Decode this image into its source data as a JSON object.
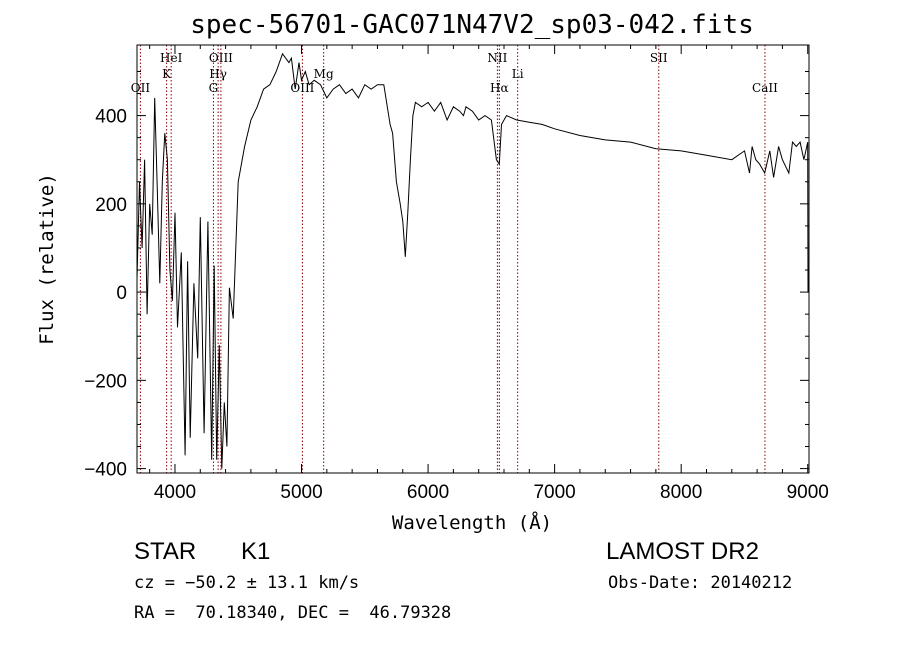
{
  "chart_data": {
    "type": "line",
    "title": "spec-56701-GAC071N47V2_sp03-042.fits",
    "xlabel": "Wavelength (Å)",
    "ylabel": "Flux (relative)",
    "xlim": [
      3700,
      9010
    ],
    "ylim": [
      -410,
      560
    ],
    "xticks": [
      4000,
      5000,
      6000,
      7000,
      8000,
      9000
    ],
    "yticks": [
      -400,
      -200,
      0,
      200,
      400
    ],
    "grid": false,
    "spectrum": {
      "x": [
        3700,
        3720,
        3740,
        3760,
        3780,
        3800,
        3820,
        3840,
        3860,
        3880,
        3900,
        3920,
        3940,
        3960,
        3980,
        4000,
        4020,
        4050,
        4080,
        4100,
        4120,
        4150,
        4180,
        4200,
        4230,
        4260,
        4290,
        4310,
        4330,
        4350,
        4370,
        4390,
        4410,
        4430,
        4460,
        4500,
        4550,
        4600,
        4650,
        4700,
        4750,
        4800,
        4850,
        4900,
        4920,
        4950,
        4980,
        5000,
        5030,
        5060,
        5100,
        5150,
        5200,
        5250,
        5300,
        5350,
        5400,
        5450,
        5500,
        5550,
        5600,
        5650,
        5700,
        5720,
        5750,
        5780,
        5800,
        5820,
        5840,
        5860,
        5880,
        5900,
        5950,
        6000,
        6050,
        6100,
        6150,
        6200,
        6250,
        6280,
        6300,
        6350,
        6400,
        6450,
        6500,
        6540,
        6563,
        6580,
        6620,
        6700,
        6800,
        6900,
        7000,
        7200,
        7400,
        7600,
        7800,
        8000,
        8200,
        8400,
        8500,
        8540,
        8560,
        8590,
        8620,
        8660,
        8700,
        8730,
        8770,
        8800,
        8850,
        8880,
        8910,
        8940,
        8970,
        9000,
        9002
      ],
      "y": [
        30,
        250,
        100,
        300,
        -50,
        200,
        130,
        440,
        240,
        20,
        250,
        360,
        300,
        50,
        -20,
        180,
        -80,
        90,
        -370,
        70,
        -330,
        20,
        -150,
        170,
        -320,
        160,
        -380,
        60,
        -380,
        -120,
        -400,
        -250,
        -350,
        10,
        -60,
        250,
        330,
        390,
        420,
        460,
        470,
        500,
        540,
        520,
        530,
        460,
        520,
        480,
        500,
        470,
        480,
        470,
        440,
        460,
        470,
        450,
        460,
        440,
        470,
        460,
        470,
        470,
        380,
        360,
        250,
        200,
        160,
        80,
        180,
        300,
        400,
        430,
        420,
        430,
        410,
        430,
        390,
        420,
        410,
        400,
        420,
        410,
        390,
        400,
        390,
        300,
        290,
        380,
        400,
        390,
        385,
        380,
        370,
        355,
        345,
        340,
        325,
        320,
        310,
        300,
        320,
        270,
        330,
        300,
        290,
        270,
        320,
        260,
        330,
        300,
        270,
        340,
        330,
        340,
        300,
        340,
        0
      ],
      "color": "#000000"
    },
    "reference_lines": [
      {
        "name": "OII",
        "wavelength": 3727
      },
      {
        "name": "K",
        "wavelength": 3934
      },
      {
        "name": "HeI",
        "wavelength": 3970
      },
      {
        "name": "G",
        "wavelength": 4304
      },
      {
        "name": "Hγ",
        "wavelength": 4341
      },
      {
        "name": "OIII",
        "wavelength": 4363
      },
      {
        "name": "OIII",
        "wavelength": 5007
      },
      {
        "name": "Mg",
        "wavelength": 5175
      },
      {
        "name": "NII",
        "wavelength": 6548
      },
      {
        "name": "Hα",
        "wavelength": 6563
      },
      {
        "name": "Li",
        "wavelength": 6708
      },
      {
        "name": "SII",
        "wavelength": 7823
      },
      {
        "name": "CaII",
        "wavelength": 8662
      }
    ],
    "reference_line_color": "#8b0000"
  },
  "info": {
    "class": "STAR",
    "subclass": "K1",
    "survey": "LAMOST DR2",
    "redshift": "cz = −50.2 ± 13.1 km/s",
    "obs_date": "Obs-Date: 20140212",
    "coords": "RA =  70.18340, DEC =  46.79328"
  }
}
